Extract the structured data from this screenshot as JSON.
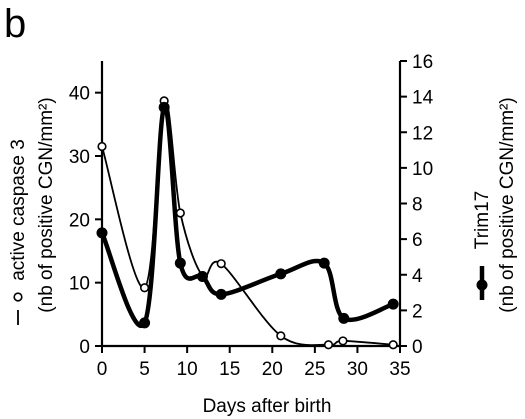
{
  "panel_label": "b",
  "chart_data": {
    "type": "line",
    "title": "",
    "xlabel": "Days after birth",
    "xlim": [
      0,
      35
    ],
    "xticks": [
      0,
      5,
      10,
      15,
      20,
      25,
      30,
      35
    ],
    "ylabel_left": {
      "line1": "active caspase 3",
      "line2": "(nb of positive CGN/mm²)"
    },
    "ylim_left": [
      0,
      45
    ],
    "yticks_left": [
      0,
      10,
      20,
      30,
      40
    ],
    "ylabel_right": {
      "line1": "Trim17",
      "line2": "(nb of positive CGN/mm²)"
    },
    "ylim_right": [
      0,
      16
    ],
    "yticks_right": [
      0,
      2,
      4,
      6,
      8,
      10,
      12,
      14,
      16
    ],
    "grid": false,
    "series": [
      {
        "name": "active caspase 3",
        "axis": "left",
        "marker": "open-circle",
        "color": "#000000",
        "points": [
          [
            0,
            31.5
          ],
          [
            5,
            9.2
          ],
          [
            7.3,
            38.7
          ],
          [
            9.2,
            21
          ],
          [
            11.8,
            11.1
          ],
          [
            14,
            13
          ],
          [
            21,
            1.6
          ],
          [
            26.6,
            0.2
          ],
          [
            28.3,
            0.8
          ],
          [
            34.2,
            0.2
          ]
        ]
      },
      {
        "name": "Trim17",
        "axis": "right",
        "marker": "filled-circle",
        "color": "#000000",
        "points": [
          [
            0,
            6.35
          ],
          [
            5,
            1.3
          ],
          [
            7.3,
            13.4
          ],
          [
            9.2,
            4.65
          ],
          [
            11.8,
            3.9
          ],
          [
            14,
            2.9
          ],
          [
            21,
            4.05
          ],
          [
            26.1,
            4.65
          ],
          [
            28.4,
            1.55
          ],
          [
            34.2,
            2.35
          ]
        ]
      }
    ]
  }
}
